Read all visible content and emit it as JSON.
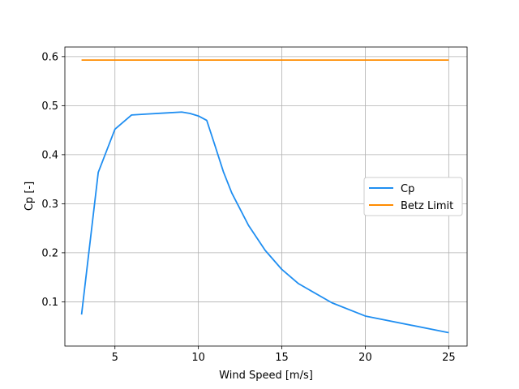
{
  "chart_data": {
    "type": "line",
    "title": "",
    "xlabel": "Wind Speed [m/s]",
    "ylabel": "Cp [-]",
    "xlim": [
      2.0,
      26.1
    ],
    "ylim": [
      0.0098,
      0.6196
    ],
    "xticks": [
      5,
      10,
      15,
      20,
      25
    ],
    "yticks": [
      0.1,
      0.2,
      0.3,
      0.4,
      0.5,
      0.6
    ],
    "xtick_labels": [
      "5",
      "10",
      "15",
      "20",
      "25"
    ],
    "ytick_labels": [
      "0.1",
      "0.2",
      "0.3",
      "0.4",
      "0.5",
      "0.6"
    ],
    "grid": true,
    "legend_position": "center-right",
    "series": [
      {
        "name": "Cp",
        "color": "#1f8ef1",
        "x": [
          3,
          4,
          5,
          6,
          7,
          8,
          9,
          9.5,
          10,
          10.5,
          11,
          11.5,
          12,
          13,
          14,
          15,
          16,
          18,
          20,
          25
        ],
        "y": [
          0.074,
          0.364,
          0.452,
          0.481,
          0.483,
          0.485,
          0.487,
          0.484,
          0.479,
          0.47,
          0.418,
          0.365,
          0.322,
          0.256,
          0.205,
          0.166,
          0.137,
          0.098,
          0.071,
          0.037
        ]
      },
      {
        "name": "Betz Limit",
        "color": "#ff8c00",
        "x": [
          3,
          25
        ],
        "y": [
          0.593,
          0.593
        ]
      }
    ]
  }
}
